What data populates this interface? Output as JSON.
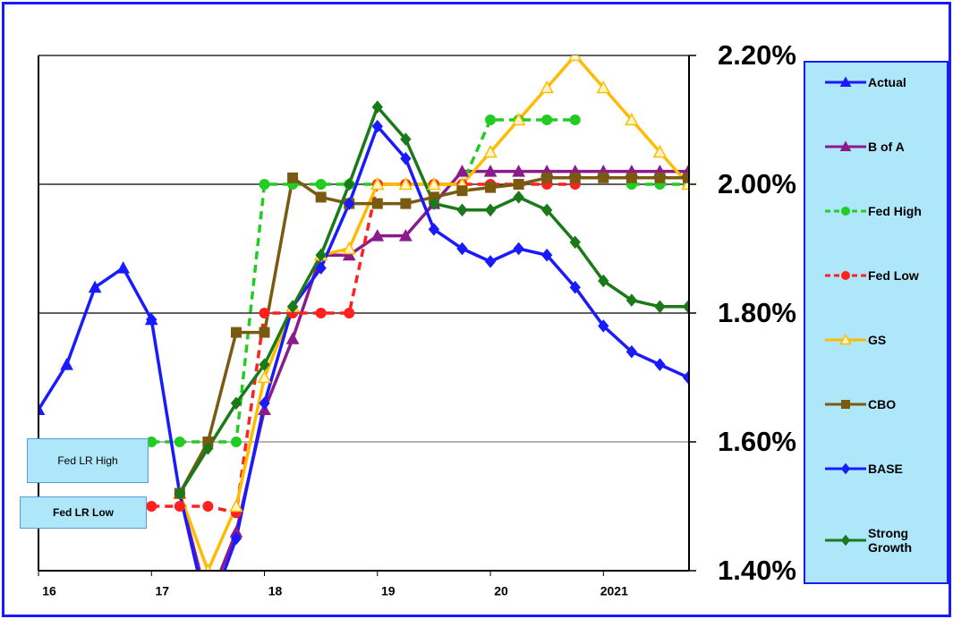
{
  "chart_data": {
    "type": "line",
    "categories": [
      "16",
      null,
      null,
      null,
      "17",
      null,
      null,
      null,
      "18",
      null,
      null,
      null,
      "19",
      null,
      null,
      null,
      "20",
      null,
      null,
      null,
      "2021",
      null,
      null,
      null
    ],
    "ylim": [
      1.4,
      2.2
    ],
    "yticks": [
      {
        "value": 1.4,
        "label": "1.40%"
      },
      {
        "value": 1.6,
        "label": "1.60%"
      },
      {
        "value": 1.8,
        "label": "1.80%"
      },
      {
        "value": 2.0,
        "label": "2.00%"
      },
      {
        "value": 2.2,
        "label": "2.20%"
      }
    ],
    "grid": true,
    "legend": "right",
    "annotations": [
      "Fed LR High",
      "Fed LR Low"
    ],
    "series": [
      {
        "name": "Actual",
        "color": "#1a1aff",
        "marker": "triangle",
        "dashed": false,
        "hollow": false,
        "values": [
          1.65,
          1.72,
          1.84,
          1.87,
          1.79,
          null,
          null,
          null,
          null,
          null,
          null,
          null,
          null,
          null,
          null,
          null,
          null,
          null,
          null,
          null,
          null,
          null,
          null,
          null
        ]
      },
      {
        "name": "B of A",
        "color": "#8b1a8b",
        "marker": "triangle",
        "dashed": false,
        "hollow": false,
        "values": [
          null,
          null,
          null,
          null,
          null,
          1.52,
          1.35,
          1.46,
          1.65,
          1.76,
          1.89,
          1.89,
          1.92,
          1.92,
          1.97,
          2.02,
          2.02,
          2.02,
          2.02,
          2.02,
          2.02,
          2.02,
          2.02,
          2.02
        ]
      },
      {
        "name": "Fed High",
        "color": "#22cc22",
        "marker": "circle",
        "dashed": true,
        "hollow": false,
        "values": [
          null,
          null,
          null,
          null,
          1.6,
          1.6,
          1.6,
          1.6,
          2.0,
          2.0,
          2.0,
          2.0,
          2.0,
          2.0,
          2.0,
          2.0,
          2.1,
          2.1,
          2.1,
          2.1,
          null,
          2.0,
          2.0,
          2.0
        ]
      },
      {
        "name": "Fed Low",
        "color": "#ff2020",
        "marker": "circle",
        "dashed": true,
        "hollow": false,
        "values": [
          null,
          null,
          null,
          null,
          1.5,
          1.5,
          1.5,
          1.49,
          1.8,
          1.8,
          1.8,
          1.8,
          2.0,
          2.0,
          2.0,
          2.0,
          2.0,
          2.0,
          2.0,
          2.0,
          null,
          null,
          null,
          null
        ]
      },
      {
        "name": "GS",
        "color": "#ffbb00",
        "marker": "triangle",
        "dashed": false,
        "hollow": true,
        "values": [
          null,
          null,
          null,
          null,
          null,
          1.52,
          1.4,
          1.5,
          1.7,
          1.81,
          1.89,
          1.9,
          2.0,
          2.0,
          2.0,
          2.0,
          2.05,
          2.1,
          2.15,
          2.2,
          2.15,
          2.1,
          2.05,
          2.0
        ]
      },
      {
        "name": "CBO",
        "color": "#7a5a10",
        "marker": "square",
        "dashed": false,
        "hollow": false,
        "values": [
          null,
          null,
          null,
          null,
          null,
          1.52,
          1.6,
          1.77,
          1.77,
          2.01,
          1.98,
          1.97,
          1.97,
          1.97,
          1.98,
          1.99,
          1.995,
          2.0,
          2.01,
          2.01,
          2.01,
          2.01,
          2.01,
          2.01
        ]
      },
      {
        "name": "BASE",
        "color": "#1a1aff",
        "marker": "diamond",
        "dashed": false,
        "hollow": false,
        "values": [
          null,
          null,
          null,
          null,
          1.79,
          1.52,
          1.33,
          1.45,
          1.66,
          1.81,
          1.87,
          1.97,
          2.09,
          2.04,
          1.93,
          1.9,
          1.88,
          1.9,
          1.89,
          1.84,
          1.78,
          1.74,
          1.72,
          1.7
        ]
      },
      {
        "name": "Strong Growth",
        "color": "#1a7a1a",
        "marker": "diamond",
        "dashed": false,
        "hollow": false,
        "values": [
          null,
          null,
          null,
          null,
          null,
          1.52,
          1.59,
          1.66,
          1.72,
          1.81,
          1.89,
          2.0,
          2.12,
          2.07,
          1.97,
          1.96,
          1.96,
          1.98,
          1.96,
          1.91,
          1.85,
          1.82,
          1.81,
          1.81
        ]
      }
    ]
  }
}
